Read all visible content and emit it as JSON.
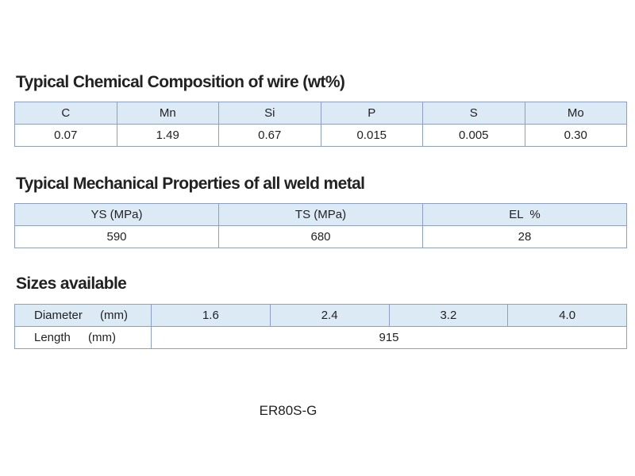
{
  "chemical": {
    "title": "Typical Chemical Composition of wire (wt%)",
    "headers": [
      "C",
      "Mn",
      "Si",
      "P",
      "S",
      "Mo"
    ],
    "values": [
      "0.07",
      "1.49",
      "0.67",
      "0.015",
      "0.005",
      "0.30"
    ]
  },
  "mechanical": {
    "title": "Typical Mechanical Properties of all weld metal",
    "headers": [
      "YS (MPa)",
      "TS (MPa)",
      "EL  %"
    ],
    "values": [
      "590",
      "680",
      "28"
    ]
  },
  "sizes": {
    "title": "Sizes available",
    "diameter": {
      "label": "Diameter (mm)",
      "values": [
        "1.6",
        "2.4",
        "3.2",
        "4.0"
      ]
    },
    "length": {
      "label": "Length (mm)",
      "value": "915"
    }
  },
  "caption": "ER80S-G"
}
